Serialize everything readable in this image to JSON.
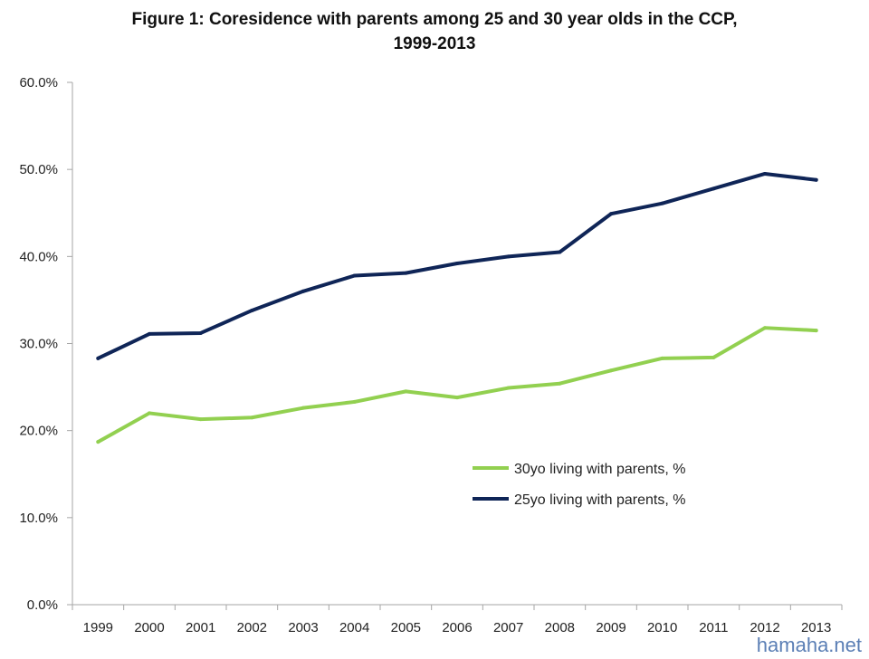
{
  "chart_data": {
    "type": "line",
    "title": "Figure 1: Coresidence with parents among 25 and 30 year olds in the CCP,",
    "title_line2": "1999-2013",
    "categories": [
      "1999",
      "2000",
      "2001",
      "2002",
      "2003",
      "2004",
      "2005",
      "2006",
      "2007",
      "2008",
      "2009",
      "2010",
      "2011",
      "2012",
      "2013"
    ],
    "series": [
      {
        "name": "30yo living with parents, %",
        "color": "#92d050",
        "values": [
          18.7,
          22.0,
          21.3,
          21.5,
          22.6,
          23.3,
          24.5,
          23.8,
          24.9,
          25.4,
          26.9,
          28.3,
          28.4,
          31.8,
          31.5
        ]
      },
      {
        "name": "25yo living with parents, %",
        "color": "#0f2557",
        "values": [
          28.3,
          31.1,
          31.2,
          33.8,
          36.0,
          37.8,
          38.1,
          39.2,
          40.0,
          40.5,
          44.9,
          46.1,
          47.8,
          49.5,
          48.8
        ]
      }
    ],
    "ylim": [
      0,
      60
    ],
    "yticks": [
      "0.0%",
      "10.0%",
      "20.0%",
      "30.0%",
      "40.0%",
      "50.0%",
      "60.0%"
    ],
    "grid": false,
    "legend_position": "center-right"
  },
  "watermark": "hamaha.net"
}
